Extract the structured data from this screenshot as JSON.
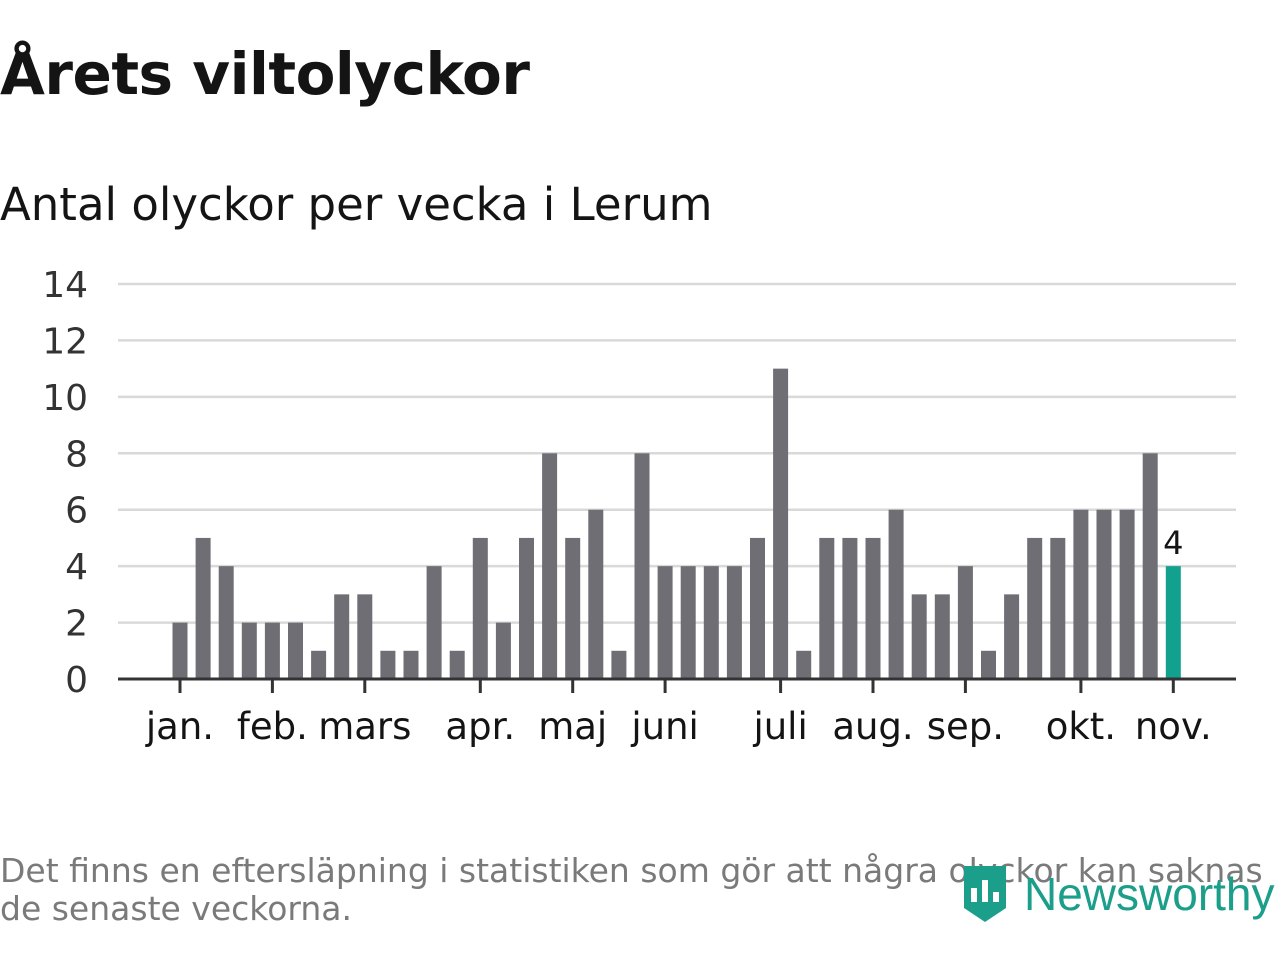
{
  "header": {
    "title": "Årets viltolyckor",
    "subtitle": "Antal olyckor per vecka i Lerum"
  },
  "footer": {
    "note": "Det finns en eftersläpning i statistiken som gör att några olyckor kan saknas de senaste veckorna.",
    "logo_text": "Newsworthy"
  },
  "colors": {
    "bar": "#6f6e74",
    "highlight": "#12a08f",
    "grid": "#d9d9d9",
    "axis": "#333333",
    "text": "#141414",
    "logo": "#1b9e8a"
  },
  "chart_data": {
    "type": "bar",
    "title": "Årets viltolyckor",
    "subtitle": "Antal olyckor per vecka i Lerum",
    "xlabel": "",
    "ylabel": "",
    "ylim": [
      0,
      14
    ],
    "yticks": [
      0,
      2,
      4,
      6,
      8,
      10,
      12,
      14
    ],
    "grid": true,
    "weeks": [
      1,
      2,
      3,
      4,
      5,
      6,
      7,
      8,
      9,
      10,
      11,
      12,
      13,
      14,
      15,
      16,
      17,
      18,
      19,
      20,
      21,
      22,
      23,
      24,
      25,
      26,
      27,
      28,
      29,
      30,
      31,
      32,
      33,
      34,
      35,
      36,
      37,
      38,
      39,
      40,
      41,
      42,
      43,
      44
    ],
    "values": [
      2,
      5,
      4,
      2,
      2,
      2,
      1,
      3,
      3,
      1,
      1,
      4,
      1,
      5,
      2,
      5,
      8,
      5,
      6,
      1,
      8,
      4,
      4,
      4,
      4,
      5,
      11,
      1,
      5,
      5,
      5,
      6,
      3,
      3,
      4,
      1,
      3,
      5,
      5,
      6,
      6,
      6,
      8,
      4
    ],
    "highlight_index": 43,
    "highlight_label": "4",
    "month_ticks": [
      {
        "label": "jan.",
        "week": 1
      },
      {
        "label": "feb.",
        "week": 5
      },
      {
        "label": "mars",
        "week": 9
      },
      {
        "label": "apr.",
        "week": 14
      },
      {
        "label": "maj",
        "week": 18
      },
      {
        "label": "juni",
        "week": 22
      },
      {
        "label": "juli",
        "week": 27
      },
      {
        "label": "aug.",
        "week": 31
      },
      {
        "label": "sep.",
        "week": 35
      },
      {
        "label": "okt.",
        "week": 40
      },
      {
        "label": "nov.",
        "week": 44
      }
    ]
  }
}
